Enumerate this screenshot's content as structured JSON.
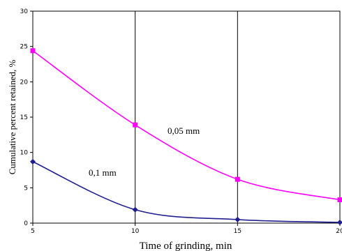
{
  "chart_data": {
    "type": "line",
    "xlabel": "Time of grinding, min",
    "ylabel": "Cumulative percent retained, %",
    "xlim": [
      5,
      20
    ],
    "ylim": [
      0,
      30
    ],
    "x_ticks": [
      5,
      10,
      15,
      20
    ],
    "y_ticks": [
      0,
      5,
      10,
      15,
      20,
      25,
      30
    ],
    "grid": "vertical-only",
    "series": [
      {
        "name": "0,05 mm",
        "color": "#ff00ff",
        "marker": "square",
        "x": [
          5,
          10,
          15,
          20
        ],
        "y": [
          24.4,
          13.9,
          6.2,
          3.3
        ]
      },
      {
        "name": "0,1 mm",
        "color": "#1f1f8f",
        "marker": "diamond",
        "x": [
          5,
          10,
          15,
          20
        ],
        "y": [
          8.7,
          1.9,
          0.5,
          0.1
        ]
      }
    ]
  }
}
